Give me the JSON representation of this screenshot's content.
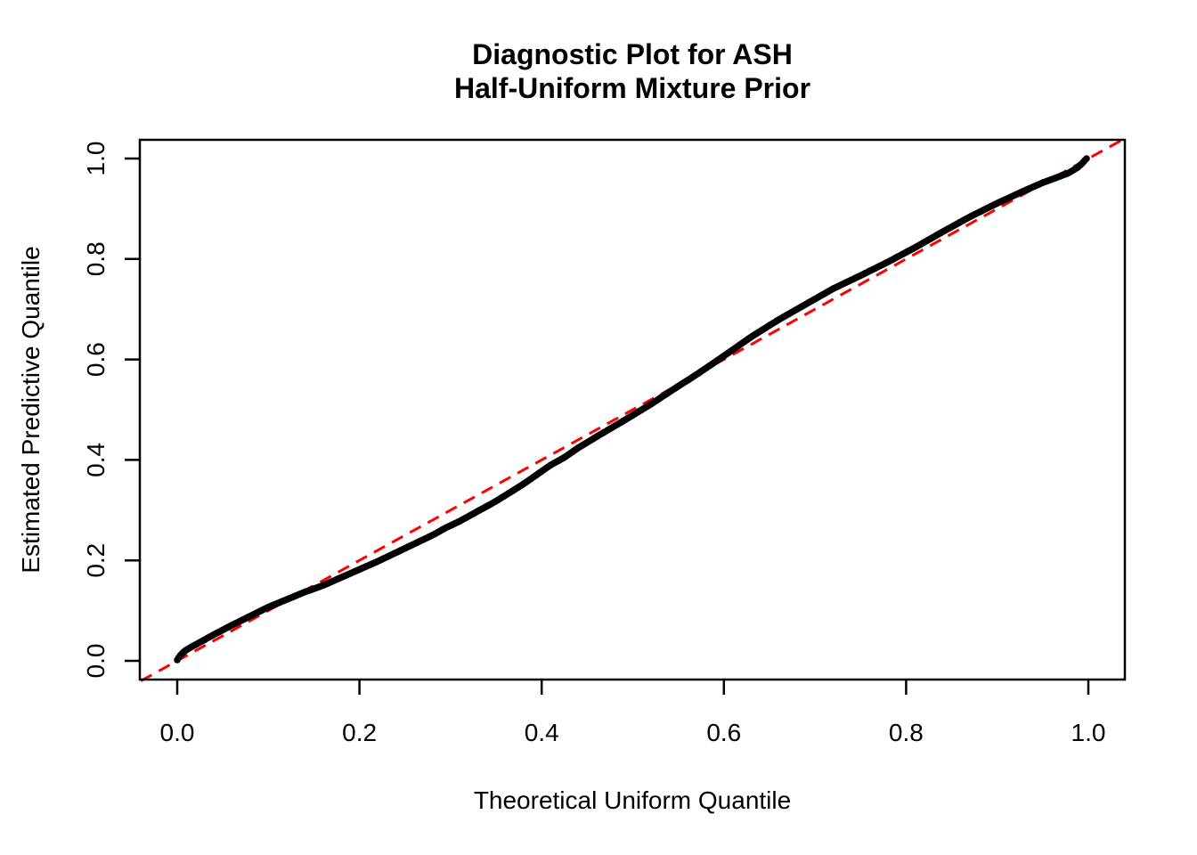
{
  "chart_data": {
    "type": "scatter",
    "subtype": "qq-plot-diagnostic",
    "title_lines": [
      "Diagnostic Plot for ASH",
      "Half-Uniform Mixture Prior"
    ],
    "xlabel": "Theoretical Uniform Quantile",
    "ylabel": "Estimated Predictive Quantile",
    "xlim": [
      -0.04,
      1.04
    ],
    "ylim": [
      -0.04,
      1.04
    ],
    "x_ticks": [
      0.0,
      0.2,
      0.4,
      0.6,
      0.8,
      1.0
    ],
    "y_ticks": [
      0.0,
      0.2,
      0.4,
      0.6,
      0.8,
      1.0
    ],
    "grid": false,
    "legend": "none",
    "background_color": "#FFFFFF",
    "point_color": "#000000",
    "axis_color": "#000000",
    "reference_line": {
      "equation": "y = x",
      "color": "#FF0000",
      "style": "dashed",
      "extent": [
        [
          -0.04,
          -0.04
        ],
        [
          1.04,
          1.04
        ]
      ]
    },
    "series": [
      {
        "name": "estimated-vs-theoretical-quantiles",
        "marker": "filled-dot",
        "n_points_rendered": 620,
        "qq_points": [
          [
            0.0,
            0.002
          ],
          [
            0.003,
            0.01
          ],
          [
            0.006,
            0.016
          ],
          [
            0.01,
            0.022
          ],
          [
            0.02,
            0.032
          ],
          [
            0.04,
            0.052
          ],
          [
            0.06,
            0.071
          ],
          [
            0.08,
            0.089
          ],
          [
            0.1,
            0.107
          ],
          [
            0.12,
            0.122
          ],
          [
            0.14,
            0.137
          ],
          [
            0.16,
            0.15
          ],
          [
            0.18,
            0.166
          ],
          [
            0.2,
            0.182
          ],
          [
            0.22,
            0.198
          ],
          [
            0.25,
            0.224
          ],
          [
            0.28,
            0.25
          ],
          [
            0.295,
            0.265
          ],
          [
            0.31,
            0.278
          ],
          [
            0.33,
            0.298
          ],
          [
            0.35,
            0.318
          ],
          [
            0.38,
            0.352
          ],
          [
            0.41,
            0.39
          ],
          [
            0.425,
            0.405
          ],
          [
            0.44,
            0.424
          ],
          [
            0.46,
            0.446
          ],
          [
            0.49,
            0.478
          ],
          [
            0.52,
            0.511
          ],
          [
            0.545,
            0.541
          ],
          [
            0.57,
            0.57
          ],
          [
            0.6,
            0.607
          ],
          [
            0.63,
            0.645
          ],
          [
            0.66,
            0.679
          ],
          [
            0.69,
            0.71
          ],
          [
            0.72,
            0.741
          ],
          [
            0.75,
            0.767
          ],
          [
            0.78,
            0.794
          ],
          [
            0.81,
            0.823
          ],
          [
            0.84,
            0.854
          ],
          [
            0.87,
            0.884
          ],
          [
            0.9,
            0.911
          ],
          [
            0.925,
            0.932
          ],
          [
            0.95,
            0.952
          ],
          [
            0.965,
            0.962
          ],
          [
            0.978,
            0.971
          ],
          [
            0.988,
            0.982
          ],
          [
            0.993,
            0.99
          ],
          [
            0.996,
            0.996
          ],
          [
            0.998,
            1.0
          ]
        ]
      }
    ]
  }
}
